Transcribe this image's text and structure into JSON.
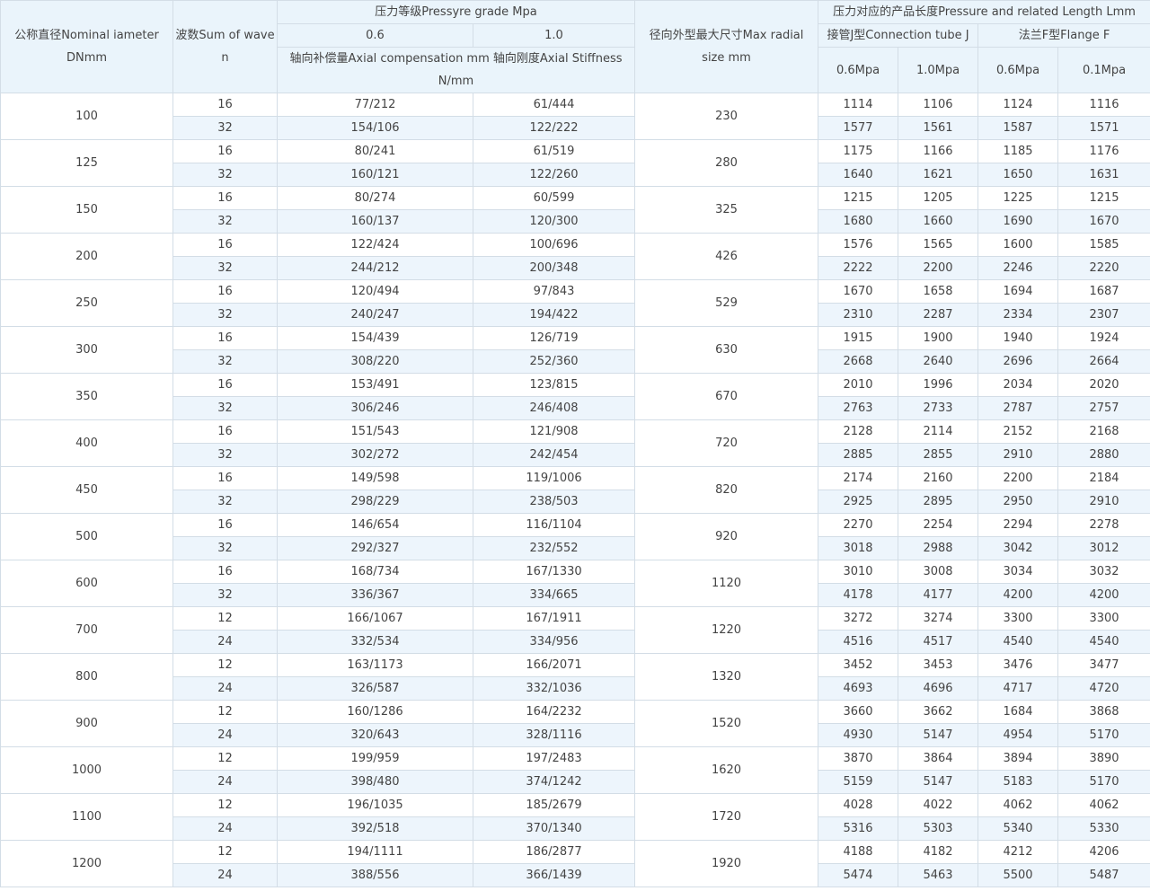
{
  "header": {
    "dn": "公称直径Nominal iameter DNmm",
    "waves": "波数Sum of wave n",
    "pressure_grade": "压力等级Pressyre grade Mpa",
    "grade_06": "0.6",
    "grade_10": "1.0",
    "comp_stiff": "轴向补偿量Axial compensation mm 轴向刚度Axial Stiffness N/mm",
    "radial": "径向外型最大尺寸Max radial size mm",
    "length": "压力对应的产品长度Pressure and related Length Lmm",
    "tube_j": "接管J型Connection tube J",
    "flange_f": "法兰F型Flange F",
    "j_06": "0.6Mpa",
    "j_10": "1.0Mpa",
    "f_06": "0.6Mpa",
    "f_01": "0.1Mpa"
  },
  "groups": [
    {
      "dn": 100,
      "radial": 230,
      "rows": [
        [
          16,
          "77/212",
          "61/444",
          1114,
          1106,
          1124,
          1116
        ],
        [
          32,
          "154/106",
          "122/222",
          1577,
          1561,
          1587,
          1571
        ]
      ]
    },
    {
      "dn": 125,
      "radial": 280,
      "rows": [
        [
          16,
          "80/241",
          "61/519",
          1175,
          1166,
          1185,
          1176
        ],
        [
          32,
          "160/121",
          "122/260",
          1640,
          1621,
          1650,
          1631
        ]
      ]
    },
    {
      "dn": 150,
      "radial": 325,
      "rows": [
        [
          16,
          "80/274",
          "60/599",
          1215,
          1205,
          1225,
          1215
        ],
        [
          32,
          "160/137",
          "120/300",
          1680,
          1660,
          1690,
          1670
        ]
      ]
    },
    {
      "dn": 200,
      "radial": 426,
      "rows": [
        [
          16,
          "122/424",
          "100/696",
          1576,
          1565,
          1600,
          1585
        ],
        [
          32,
          "244/212",
          "200/348",
          2222,
          2200,
          2246,
          2220
        ]
      ]
    },
    {
      "dn": 250,
      "radial": 529,
      "rows": [
        [
          16,
          "120/494",
          "97/843",
          1670,
          1658,
          1694,
          1687
        ],
        [
          32,
          "240/247",
          "194/422",
          2310,
          2287,
          2334,
          2307
        ]
      ]
    },
    {
      "dn": 300,
      "radial": 630,
      "rows": [
        [
          16,
          "154/439",
          "126/719",
          1915,
          1900,
          1940,
          1924
        ],
        [
          32,
          "308/220",
          "252/360",
          2668,
          2640,
          2696,
          2664
        ]
      ]
    },
    {
      "dn": 350,
      "radial": 670,
      "rows": [
        [
          16,
          "153/491",
          "123/815",
          2010,
          1996,
          2034,
          2020
        ],
        [
          32,
          "306/246",
          "246/408",
          2763,
          2733,
          2787,
          2757
        ]
      ]
    },
    {
      "dn": 400,
      "radial": 720,
      "rows": [
        [
          16,
          "151/543",
          "121/908",
          2128,
          2114,
          2152,
          2168
        ],
        [
          32,
          "302/272",
          "242/454",
          2885,
          2855,
          2910,
          2880
        ]
      ]
    },
    {
      "dn": 450,
      "radial": 820,
      "rows": [
        [
          16,
          "149/598",
          "119/1006",
          2174,
          2160,
          2200,
          2184
        ],
        [
          32,
          "298/229",
          "238/503",
          2925,
          2895,
          2950,
          2910
        ]
      ]
    },
    {
      "dn": 500,
      "radial": 920,
      "rows": [
        [
          16,
          "146/654",
          "116/1104",
          2270,
          2254,
          2294,
          2278
        ],
        [
          32,
          "292/327",
          "232/552",
          3018,
          2988,
          3042,
          3012
        ]
      ]
    },
    {
      "dn": 600,
      "radial": 1120,
      "rows": [
        [
          16,
          "168/734",
          "167/1330",
          3010,
          3008,
          3034,
          3032
        ],
        [
          32,
          "336/367",
          "334/665",
          4178,
          4177,
          4200,
          4200
        ]
      ]
    },
    {
      "dn": 700,
      "radial": 1220,
      "rows": [
        [
          12,
          "166/1067",
          "167/1911",
          3272,
          3274,
          3300,
          3300
        ],
        [
          24,
          "332/534",
          "334/956",
          4516,
          4517,
          4540,
          4540
        ]
      ]
    },
    {
      "dn": 800,
      "radial": 1320,
      "rows": [
        [
          12,
          "163/1173",
          "166/2071",
          3452,
          3453,
          3476,
          3477
        ],
        [
          24,
          "326/587",
          "332/1036",
          4693,
          4696,
          4717,
          4720
        ]
      ]
    },
    {
      "dn": 900,
      "radial": 1520,
      "rows": [
        [
          12,
          "160/1286",
          "164/2232",
          3660,
          3662,
          1684,
          3868
        ],
        [
          24,
          "320/643",
          "328/1116",
          4930,
          5147,
          4954,
          5170
        ]
      ]
    },
    {
      "dn": 1000,
      "radial": 1620,
      "rows": [
        [
          12,
          "199/959",
          "197/2483",
          3870,
          3864,
          3894,
          3890
        ],
        [
          24,
          "398/480",
          "374/1242",
          5159,
          5147,
          5183,
          5170
        ]
      ]
    },
    {
      "dn": 1100,
      "radial": 1720,
      "rows": [
        [
          12,
          "196/1035",
          "185/2679",
          4028,
          4022,
          4062,
          4062
        ],
        [
          24,
          "392/518",
          "370/1340",
          5316,
          5303,
          5340,
          5330
        ]
      ]
    },
    {
      "dn": 1200,
      "radial": 1920,
      "rows": [
        [
          12,
          "194/1111",
          "186/2877",
          4188,
          4182,
          4212,
          4206
        ],
        [
          24,
          "388/556",
          "366/1439",
          5474,
          5463,
          5500,
          5487
        ]
      ]
    }
  ]
}
